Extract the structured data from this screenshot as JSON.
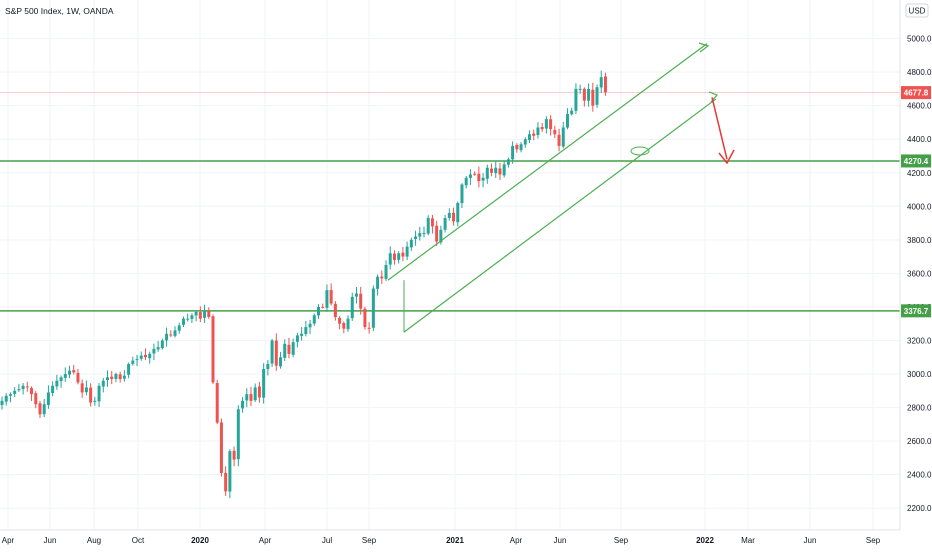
{
  "header": {
    "symbol_text": "S&P 500 Index, 1W, OANDA"
  },
  "currency_badge": "USD",
  "colors": {
    "up": "#26a69a",
    "down": "#ef5350",
    "channel": "#4caf50",
    "level": "#43a047",
    "arrow": "#e53935",
    "last_price": "#ef5350",
    "grid": "#f0f3fa",
    "axis_text": "#131722"
  },
  "chart_data": {
    "type": "candlestick",
    "title": "S&P 500 Index, 1W, OANDA",
    "xlabel": "",
    "ylabel": "",
    "x_ticks": [
      "Apr",
      "Jun",
      "Aug",
      "Oct",
      "2020",
      "Apr",
      "Jul",
      "Sep",
      "2021",
      "Apr",
      "Jun",
      "Sep",
      "2022",
      "Mar",
      "Jun",
      "Sep"
    ],
    "y_ticks": [
      2200.0,
      2400.0,
      2600.0,
      2800.0,
      3000.0,
      3200.0,
      3400.0,
      3600.0,
      3800.0,
      4000.0,
      4200.0,
      4400.0,
      4600.0,
      4800.0,
      5000.0
    ],
    "y_tick_labels": [
      "2200.0",
      "2400.0",
      "2600.0",
      "2800.0",
      "3000.0",
      "3200.0",
      "3400.0",
      "3600.0",
      "3800.0",
      "4000.0",
      "4200.0",
      "4400.0",
      "4600.0",
      "4800.0",
      "5000.0"
    ],
    "ylim": [
      2070,
      5230
    ],
    "grid": true,
    "price_labels": [
      {
        "value": 4677.8,
        "text": "4677.8",
        "role": "last-price"
      },
      {
        "value": 4270.4,
        "text": "4270.4",
        "role": "support-level"
      },
      {
        "value": 3376.7,
        "text": "3376.7",
        "role": "resistance-level"
      }
    ],
    "horizontal_levels": [
      4270.4,
      3376.7
    ],
    "weekly_closes_approx": [
      2840,
      2870,
      2880,
      2900,
      2910,
      2930,
      2920,
      2880,
      2820,
      2760,
      2820,
      2890,
      2930,
      2960,
      2980,
      3000,
      3020,
      3010,
      2950,
      2890,
      2920,
      2830,
      2840,
      2930,
      2960,
      2980,
      2970,
      3000,
      2970,
      2990,
      3060,
      3080,
      3090,
      3110,
      3100,
      3120,
      3150,
      3160,
      3200,
      3240,
      3230,
      3260,
      3290,
      3330,
      3330,
      3350,
      3370,
      3330,
      3380,
      3340,
      2950,
      2710,
      2410,
      2300,
      2540,
      2490,
      2790,
      2840,
      2880,
      2840,
      2920,
      2860,
      3030,
      3060,
      3200,
      3050,
      3100,
      3180,
      3120,
      3190,
      3230,
      3240,
      3280,
      3300,
      3350,
      3400,
      3400,
      3500,
      3420,
      3340,
      3300,
      3270,
      3330,
      3460,
      3480,
      3390,
      3280,
      3270,
      3510,
      3580,
      3570,
      3650,
      3720,
      3680,
      3720,
      3700,
      3760,
      3800,
      3820,
      3840,
      3840,
      3930,
      3880,
      3790,
      3860,
      3930,
      3960,
      3910,
      4020,
      4130,
      4170,
      4190,
      4190,
      4150,
      4170,
      4230,
      4200,
      4230,
      4190,
      4250,
      4280,
      4360,
      4340,
      4370,
      4400,
      4430,
      4420,
      4470,
      4460,
      4520,
      4460,
      4430,
      4360,
      4470,
      4550,
      4570,
      4700,
      4700,
      4630,
      4700,
      4600,
      4710,
      4770,
      4680
    ],
    "annotations": [
      {
        "type": "ascending-channel",
        "from": [
          "2020 Oct",
          3250
        ],
        "to": [
          "2022",
          4640
        ],
        "upper_start": 3560,
        "upper_end": 4970
      },
      {
        "type": "arrow-down",
        "from_value": 4650,
        "to_value": 4280
      }
    ]
  }
}
